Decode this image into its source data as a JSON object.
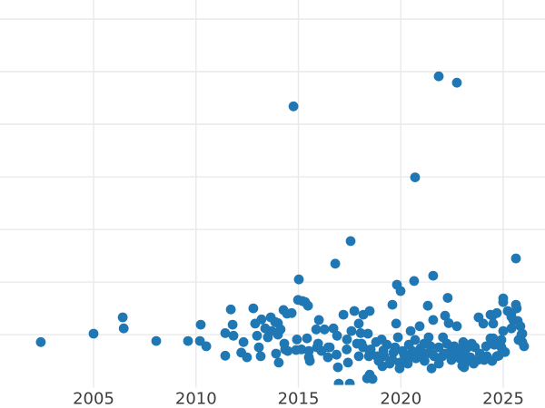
{
  "chart": {
    "point_color": "#1f77b4",
    "grid_color": "#e9e9e9",
    "tick_mark_color": "#dcdcdc",
    "tick_label_color": "#3d3d3d",
    "background_color": "#ffffff",
    "tick_font_size": 18
  },
  "chart_data": {
    "type": "scatter",
    "title": "",
    "subtitle": "",
    "xlabel": "",
    "ylabel": "",
    "legend": false,
    "grid": true,
    "xlim": [
      2000.43,
      2027.04
    ],
    "ylim": [
      0.044,
      7.362
    ],
    "x_tick_years": [
      2005,
      2010,
      2015,
      2020,
      2025
    ],
    "x_tick_labels": [
      "2005",
      "2010",
      "2015",
      "2020",
      "2025"
    ],
    "y_gridline_values": [
      1,
      2,
      3,
      4,
      5,
      6,
      7
    ],
    "series": [
      {
        "name": "observations",
        "marker": "circle",
        "marker_radius_px": 5.4,
        "points": [
          [
            2002.42,
            0.86
          ],
          [
            2005.0,
            1.02
          ],
          [
            2006.42,
            1.33
          ],
          [
            2006.47,
            1.12
          ],
          [
            2008.06,
            0.88
          ],
          [
            2009.61,
            0.88
          ],
          [
            2010.23,
            1.19
          ],
          [
            2010.19,
            0.88
          ],
          [
            2010.5,
            0.78
          ],
          [
            2011.43,
            1.03
          ],
          [
            2011.43,
            0.6
          ],
          [
            2011.7,
            1.48
          ],
          [
            2011.79,
            1.19
          ],
          [
            2011.83,
            0.98
          ],
          [
            2012.21,
            0.66
          ],
          [
            2012.32,
            0.86
          ],
          [
            2012.49,
            0.57
          ],
          [
            2012.8,
            1.5
          ],
          [
            2012.89,
            1.21
          ],
          [
            2012.98,
            0.98
          ],
          [
            2013.07,
            0.76
          ],
          [
            2013.16,
            0.59
          ],
          [
            2013.2,
            1.29
          ],
          [
            2013.38,
            1.12
          ],
          [
            2013.51,
            0.95
          ],
          [
            2013.65,
            1.33
          ],
          [
            2013.69,
            1.07
          ],
          [
            2013.87,
            1.24
          ],
          [
            2013.91,
            0.64
          ],
          [
            2014.0,
            1.0
          ],
          [
            2014.0,
            1.22
          ],
          [
            2014.13,
            1.1
          ],
          [
            2014.04,
            0.47
          ],
          [
            2014.27,
            1.47
          ],
          [
            2014.35,
            0.72
          ],
          [
            2014.44,
            1.4
          ],
          [
            2014.48,
            0.69
          ],
          [
            2014.76,
            5.34
          ],
          [
            2014.67,
            1.41
          ],
          [
            2015.02,
            2.05
          ],
          [
            2014.98,
            1.66
          ],
          [
            2014.89,
            0.71
          ],
          [
            2014.93,
            0.91
          ],
          [
            2015.2,
            1.64
          ],
          [
            2015.15,
            0.72
          ],
          [
            2015.33,
            1.62
          ],
          [
            2015.42,
            0.93
          ],
          [
            2015.47,
            1.55
          ],
          [
            2015.51,
            0.69
          ],
          [
            2015.51,
            0.57
          ],
          [
            2015.87,
            1.1
          ],
          [
            2015.91,
            0.76
          ],
          [
            2016.0,
            1.28
          ],
          [
            2016.13,
            0.69
          ],
          [
            2016.27,
            1.1
          ],
          [
            2016.44,
            0.57
          ],
          [
            2016.53,
            0.76
          ],
          [
            2016.8,
            2.35
          ],
          [
            2016.71,
            1.12
          ],
          [
            2016.93,
            0.38
          ],
          [
            2016.89,
            0.98
          ],
          [
            2016.97,
            0.07
          ],
          [
            2017.2,
            1.38
          ],
          [
            2017.37,
            0.91
          ],
          [
            2017.55,
            2.78
          ],
          [
            2017.42,
            0.47
          ],
          [
            2017.59,
            1.07
          ],
          [
            2017.51,
            0.07
          ],
          [
            2017.73,
            1.45
          ],
          [
            2017.95,
            1.21
          ],
          [
            2017.95,
            0.59
          ],
          [
            2018.04,
            1.03
          ],
          [
            2018.08,
            0.83
          ],
          [
            2018.17,
            1.38
          ],
          [
            2018.35,
            0.17
          ],
          [
            2018.44,
            0.59
          ],
          [
            2018.39,
            1.02
          ],
          [
            2018.48,
            1.45
          ],
          [
            2018.48,
            0.64
          ],
          [
            2018.48,
            0.24
          ],
          [
            2018.97,
            0.57
          ],
          [
            2018.79,
            0.86
          ],
          [
            2018.62,
            0.16
          ],
          [
            2018.84,
            0.59
          ],
          [
            2019.06,
            0.91
          ],
          [
            2019.1,
            0.4
          ],
          [
            2019.19,
            0.59
          ],
          [
            2019.32,
            0.81
          ],
          [
            2019.59,
            1.57
          ],
          [
            2019.59,
            0.52
          ],
          [
            2019.72,
            0.76
          ],
          [
            2019.77,
            1.21
          ],
          [
            2019.81,
            1.95
          ],
          [
            2019.94,
            0.47
          ],
          [
            2019.94,
            0.36
          ],
          [
            2019.99,
            1.83
          ],
          [
            2020.08,
            0.69
          ],
          [
            2020.34,
            0.55
          ],
          [
            2020.39,
            0.81
          ],
          [
            2020.7,
            3.99
          ],
          [
            2020.48,
            1.07
          ],
          [
            2020.65,
            2.02
          ],
          [
            2020.7,
            0.9
          ],
          [
            2020.83,
            0.59
          ],
          [
            2020.92,
            1.16
          ],
          [
            2021.14,
            0.83
          ],
          [
            2021.23,
            0.64
          ],
          [
            2021.32,
            1.55
          ],
          [
            2021.45,
            0.78
          ],
          [
            2021.58,
            2.12
          ],
          [
            2021.5,
            0.36
          ],
          [
            2021.58,
            1.28
          ],
          [
            2021.85,
            5.91
          ],
          [
            2021.63,
            0.59
          ],
          [
            2021.85,
            0.76
          ],
          [
            2022.03,
            0.59
          ],
          [
            2022.16,
            1.36
          ],
          [
            2022.25,
            0.83
          ],
          [
            2022.29,
            1.7
          ],
          [
            2022.34,
            1.22
          ],
          [
            2022.47,
            0.52
          ],
          [
            2022.61,
            0.78
          ],
          [
            2022.74,
            5.79
          ],
          [
            2022.74,
            1.16
          ],
          [
            2022.87,
            0.55
          ],
          [
            2023.0,
            0.41
          ],
          [
            2023.05,
            0.86
          ],
          [
            2023.09,
            0.38
          ],
          [
            2023.27,
            0.76
          ],
          [
            2023.31,
            0.5
          ],
          [
            2023.4,
            0.57
          ],
          [
            2023.62,
            0.76
          ],
          [
            2023.76,
            0.52
          ],
          [
            2023.8,
            1.33
          ],
          [
            2024.03,
            1.21
          ],
          [
            2024.07,
            0.52
          ],
          [
            2024.2,
            0.59
          ],
          [
            2024.38,
            1.38
          ],
          [
            2024.38,
            0.93
          ],
          [
            2024.47,
            1.36
          ],
          [
            2024.51,
            1.21
          ],
          [
            2024.51,
            0.93
          ],
          [
            2024.56,
            0.81
          ],
          [
            2024.69,
            1.41
          ],
          [
            2024.69,
            0.59
          ],
          [
            2024.78,
            0.6
          ],
          [
            2024.91,
            0.9
          ],
          [
            2024.91,
            0.76
          ],
          [
            2025.0,
            1.69
          ],
          [
            2025.0,
            1.62
          ],
          [
            2025.0,
            1.07
          ],
          [
            2025.09,
            0.67
          ],
          [
            2025.22,
            1.45
          ],
          [
            2025.4,
            1.41
          ],
          [
            2025.4,
            1.34
          ],
          [
            2025.62,
            2.45
          ],
          [
            2025.4,
            1.12
          ],
          [
            2025.49,
            1.28
          ],
          [
            2025.62,
            1.57
          ],
          [
            2025.66,
            1.5
          ],
          [
            2025.71,
            1.26
          ],
          [
            2025.84,
            1.16
          ],
          [
            2025.89,
            1.0
          ],
          [
            2025.93,
            1.02
          ],
          [
            2025.93,
            0.86
          ],
          [
            2026.02,
            0.78
          ],
          [
            2025.75,
            0.9
          ],
          [
            2018.53,
            0.72
          ],
          [
            2018.92,
            0.5
          ],
          [
            2019.15,
            0.7
          ],
          [
            2019.46,
            0.45
          ],
          [
            2019.64,
            0.66
          ],
          [
            2019.86,
            0.95
          ],
          [
            2020.16,
            0.62
          ],
          [
            2020.34,
            0.45
          ],
          [
            2020.56,
            0.69
          ],
          [
            2020.74,
            0.55
          ],
          [
            2020.96,
            0.74
          ],
          [
            2021.16,
            0.5
          ],
          [
            2021.36,
            0.95
          ],
          [
            2021.56,
            0.62
          ],
          [
            2021.86,
            0.45
          ],
          [
            2022.06,
            0.95
          ],
          [
            2022.16,
            0.64
          ],
          [
            2022.46,
            0.69
          ],
          [
            2022.66,
            0.62
          ],
          [
            2022.86,
            0.72
          ],
          [
            2023.16,
            0.62
          ],
          [
            2023.46,
            0.83
          ],
          [
            2023.56,
            0.45
          ],
          [
            2023.86,
            0.64
          ],
          [
            2024.16,
            0.78
          ],
          [
            2024.46,
            0.5
          ],
          [
            2024.86,
            0.81
          ],
          [
            2016.86,
            0.62
          ],
          [
            2017.36,
            0.72
          ],
          [
            2017.86,
            0.83
          ],
          [
            2018.16,
            0.76
          ],
          [
            2014.31,
            0.83
          ],
          [
            2015.56,
            0.5
          ],
          [
            2015.96,
            0.83
          ],
          [
            2016.46,
            0.76
          ]
        ]
      }
    ]
  }
}
